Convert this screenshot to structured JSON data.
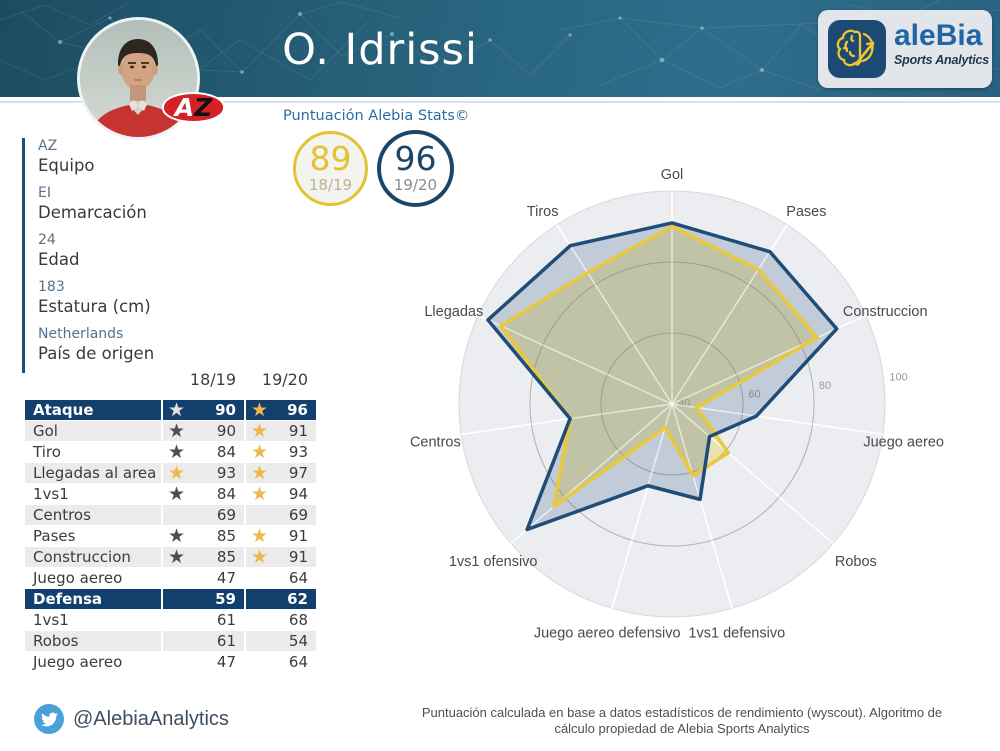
{
  "header": {
    "title": "O. Idrissi",
    "team_badge": "AZ"
  },
  "brand": {
    "name": "aleBia",
    "tagline": "Sports Analytics"
  },
  "score": {
    "heading": "Puntuación Alebia Stats©",
    "badges": [
      {
        "value": "89",
        "season": "18/19",
        "color": "#e3c334"
      },
      {
        "value": "96",
        "season": "19/20",
        "color": "#1b4668"
      }
    ]
  },
  "player_info": [
    {
      "value": "AZ",
      "label": "Equipo"
    },
    {
      "value": "EI",
      "label": "Demarcación"
    },
    {
      "value": "24",
      "label": "Edad"
    },
    {
      "value": "183",
      "label": "Estatura (cm)"
    },
    {
      "value": "Netherlands",
      "label": "País de origen"
    }
  ],
  "table": {
    "columns": [
      "18/19",
      "19/20"
    ],
    "rows": [
      {
        "label": "Ataque",
        "v1": 90,
        "v2": 96,
        "star1": "white",
        "star2": "yellow",
        "header": true
      },
      {
        "label": "Gol",
        "v1": 90,
        "v2": 91,
        "star1": "dark",
        "star2": "yellow"
      },
      {
        "label": "Tiro",
        "v1": 84,
        "v2": 93,
        "star1": "dark",
        "star2": "yellow"
      },
      {
        "label": "Llegadas al area",
        "v1": 93,
        "v2": 97,
        "star1": "yellow",
        "star2": "yellow"
      },
      {
        "label": "1vs1",
        "v1": 84,
        "v2": 94,
        "star1": "dark",
        "star2": "yellow"
      },
      {
        "label": "Centros",
        "v1": 69,
        "v2": 69,
        "star1": null,
        "star2": null
      },
      {
        "label": "Pases",
        "v1": 85,
        "v2": 91,
        "star1": "dark",
        "star2": "yellow"
      },
      {
        "label": "Construccion",
        "v1": 85,
        "v2": 91,
        "star1": "dark",
        "star2": "yellow"
      },
      {
        "label": "Juego aereo",
        "v1": 47,
        "v2": 64,
        "star1": null,
        "star2": null
      },
      {
        "label": "Defensa",
        "v1": 59,
        "v2": 62,
        "star1": null,
        "star2": null,
        "header": true
      },
      {
        "label": "1vs1",
        "v1": 61,
        "v2": 68,
        "star1": null,
        "star2": null
      },
      {
        "label": "Robos",
        "v1": 61,
        "v2": 54,
        "star1": null,
        "star2": null
      },
      {
        "label": "Juego aereo",
        "v1": 47,
        "v2": 64,
        "star1": null,
        "star2": null
      }
    ]
  },
  "chart_data": {
    "type": "radar",
    "categories": [
      "Gol",
      "Pases",
      "Construccion",
      "Juego aereo",
      "Robos",
      "1vs1 defensivo",
      "Juego aereo defensivo",
      "1vs1 ofensivo",
      "Centros",
      "Llegadas",
      "Tiros"
    ],
    "series": [
      {
        "name": "18/19",
        "color": "#e9c93b",
        "fill_opacity": 0.34,
        "values": [
          90,
          85,
          85,
          47,
          61,
          61,
          47,
          84,
          69,
          93,
          84
        ]
      },
      {
        "name": "19/20",
        "color": "#1f4d78",
        "fill_opacity": 0.2,
        "values": [
          91,
          91,
          91,
          64,
          54,
          68,
          64,
          94,
          69,
          97,
          93
        ]
      }
    ],
    "raxis": {
      "min": 40,
      "max": 100,
      "ticks": [
        40,
        60,
        80,
        100
      ]
    },
    "legend": "none",
    "grid": true
  },
  "footer": {
    "twitter": "@AlebiaAnalytics",
    "note_line1": "Puntuación calculada en base a datos estadísticos de rendimiento (wyscout). Algoritmo de",
    "note_line2": "cálculo propiedad de Alebia Sports Analytics"
  }
}
